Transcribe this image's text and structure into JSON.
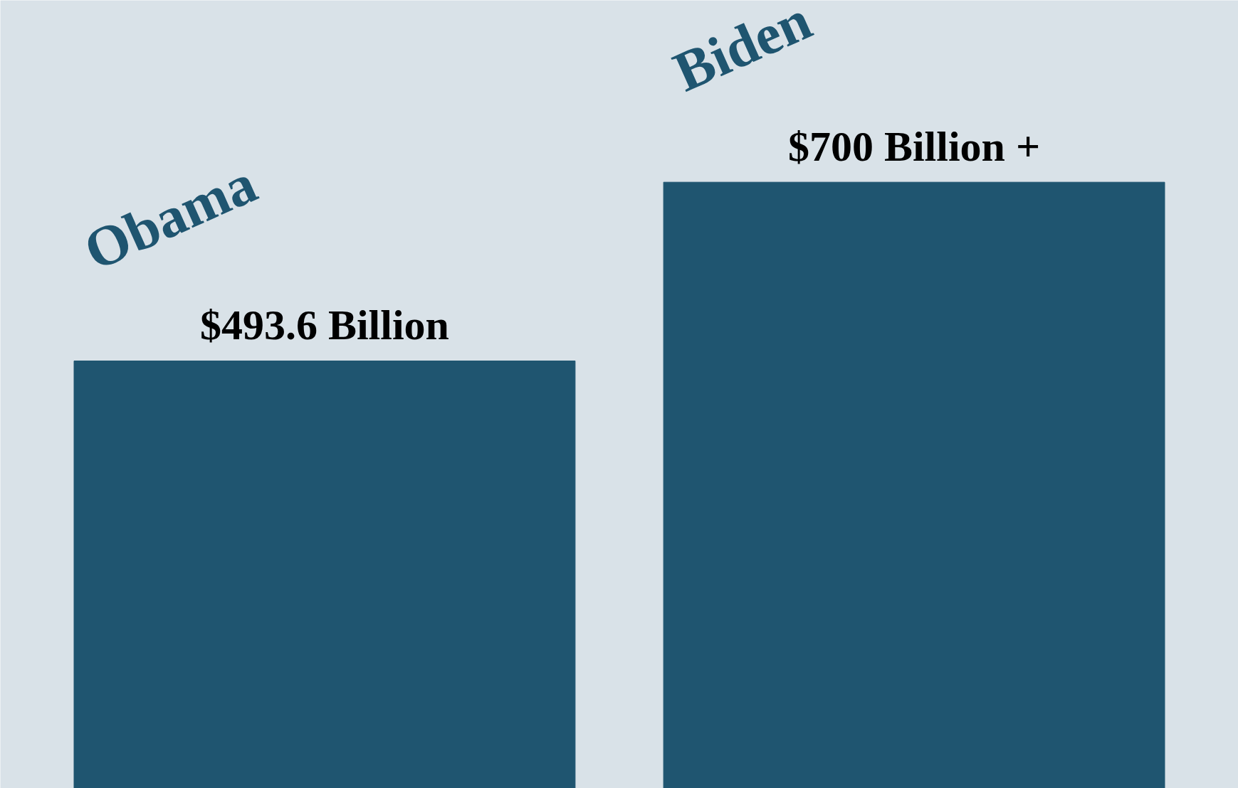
{
  "chart_data": {
    "type": "bar",
    "categories": [
      "Obama",
      "Biden"
    ],
    "values": [
      493.6,
      700
    ],
    "color": "#1f5570",
    "value_labels": [
      "$493.6 Billion",
      "$700 Billion +"
    ]
  }
}
